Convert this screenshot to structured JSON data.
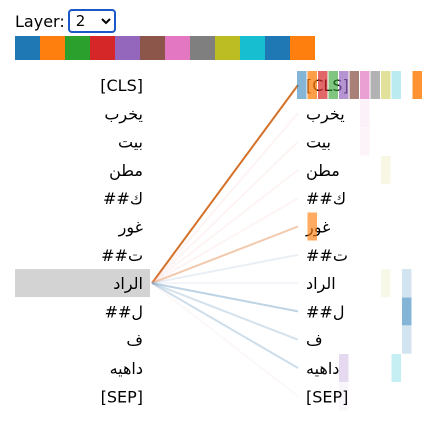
{
  "layer_control": {
    "label": "Layer:",
    "selected": "2",
    "options": [
      "2"
    ]
  },
  "palette": [
    "#1f77b4",
    "#ff7f0e",
    "#2ca02c",
    "#d62728",
    "#9467bd",
    "#8c564b",
    "#e377c2",
    "#7f7f7f",
    "#bcbd22",
    "#17becf",
    "#1f77b4",
    "#ff7f0e"
  ],
  "tokens": [
    "[CLS]",
    "يخرب",
    "بيت",
    "مطن",
    "##ك",
    "غور",
    "##ت",
    "الراد",
    "##ل",
    "ف",
    "داهيه",
    "[SEP]"
  ],
  "selected_token_index": 7,
  "attention_from_selected": [
    0.95,
    0.05,
    0.04,
    0.05,
    0.06,
    0.5,
    0.25,
    0.15,
    0.45,
    0.3,
    0.35,
    0.08
  ],
  "attention_colors": [
    "#d2691e",
    "#f4a4a4",
    "#f4a4a4",
    "#f4a4a4",
    "#f4a4a4",
    "#e8935e",
    "#a8bfd8",
    "#a8bfd8",
    "#6f9fc4",
    "#6f9fc4",
    "#6f9fc4",
    "#f0c8c8"
  ],
  "head_cells": [
    {
      "row": 0,
      "head": 0,
      "color": "#1f77b4",
      "alpha": 0.55
    },
    {
      "row": 0,
      "head": 1,
      "color": "#ff7f0e",
      "alpha": 0.75
    },
    {
      "row": 0,
      "head": 2,
      "color": "#d62728",
      "alpha": 0.7
    },
    {
      "row": 0,
      "head": 3,
      "color": "#2ca02c",
      "alpha": 0.6
    },
    {
      "row": 0,
      "head": 4,
      "color": "#9467bd",
      "alpha": 0.7
    },
    {
      "row": 0,
      "head": 5,
      "color": "#8c564b",
      "alpha": 0.75
    },
    {
      "row": 0,
      "head": 6,
      "color": "#e377c2",
      "alpha": 0.7
    },
    {
      "row": 0,
      "head": 7,
      "color": "#7f7f7f",
      "alpha": 0.6
    },
    {
      "row": 0,
      "head": 8,
      "color": "#bcbd22",
      "alpha": 0.45
    },
    {
      "row": 0,
      "head": 9,
      "color": "#17becf",
      "alpha": 0.3
    },
    {
      "row": 0,
      "head": 11,
      "color": "#ff7f0e",
      "alpha": 0.85
    },
    {
      "row": 1,
      "head": 6,
      "color": "#e377c2",
      "alpha": 0.1
    },
    {
      "row": 2,
      "head": 6,
      "color": "#e377c2",
      "alpha": 0.08
    },
    {
      "row": 3,
      "head": 8,
      "color": "#bcbd22",
      "alpha": 0.12
    },
    {
      "row": 5,
      "head": 1,
      "color": "#ff7f0e",
      "alpha": 0.65
    },
    {
      "row": 7,
      "head": 8,
      "color": "#bcbd22",
      "alpha": 0.1
    },
    {
      "row": 7,
      "head": 10,
      "color": "#1f77b4",
      "alpha": 0.2
    },
    {
      "row": 8,
      "head": 10,
      "color": "#1f77b4",
      "alpha": 0.55
    },
    {
      "row": 9,
      "head": 10,
      "color": "#1f77b4",
      "alpha": 0.2
    },
    {
      "row": 10,
      "head": 4,
      "color": "#9467bd",
      "alpha": 0.25
    },
    {
      "row": 10,
      "head": 9,
      "color": "#17becf",
      "alpha": 0.25
    },
    {
      "row": 11,
      "head": 4,
      "color": "#9467bd",
      "alpha": 0.06
    }
  ]
}
